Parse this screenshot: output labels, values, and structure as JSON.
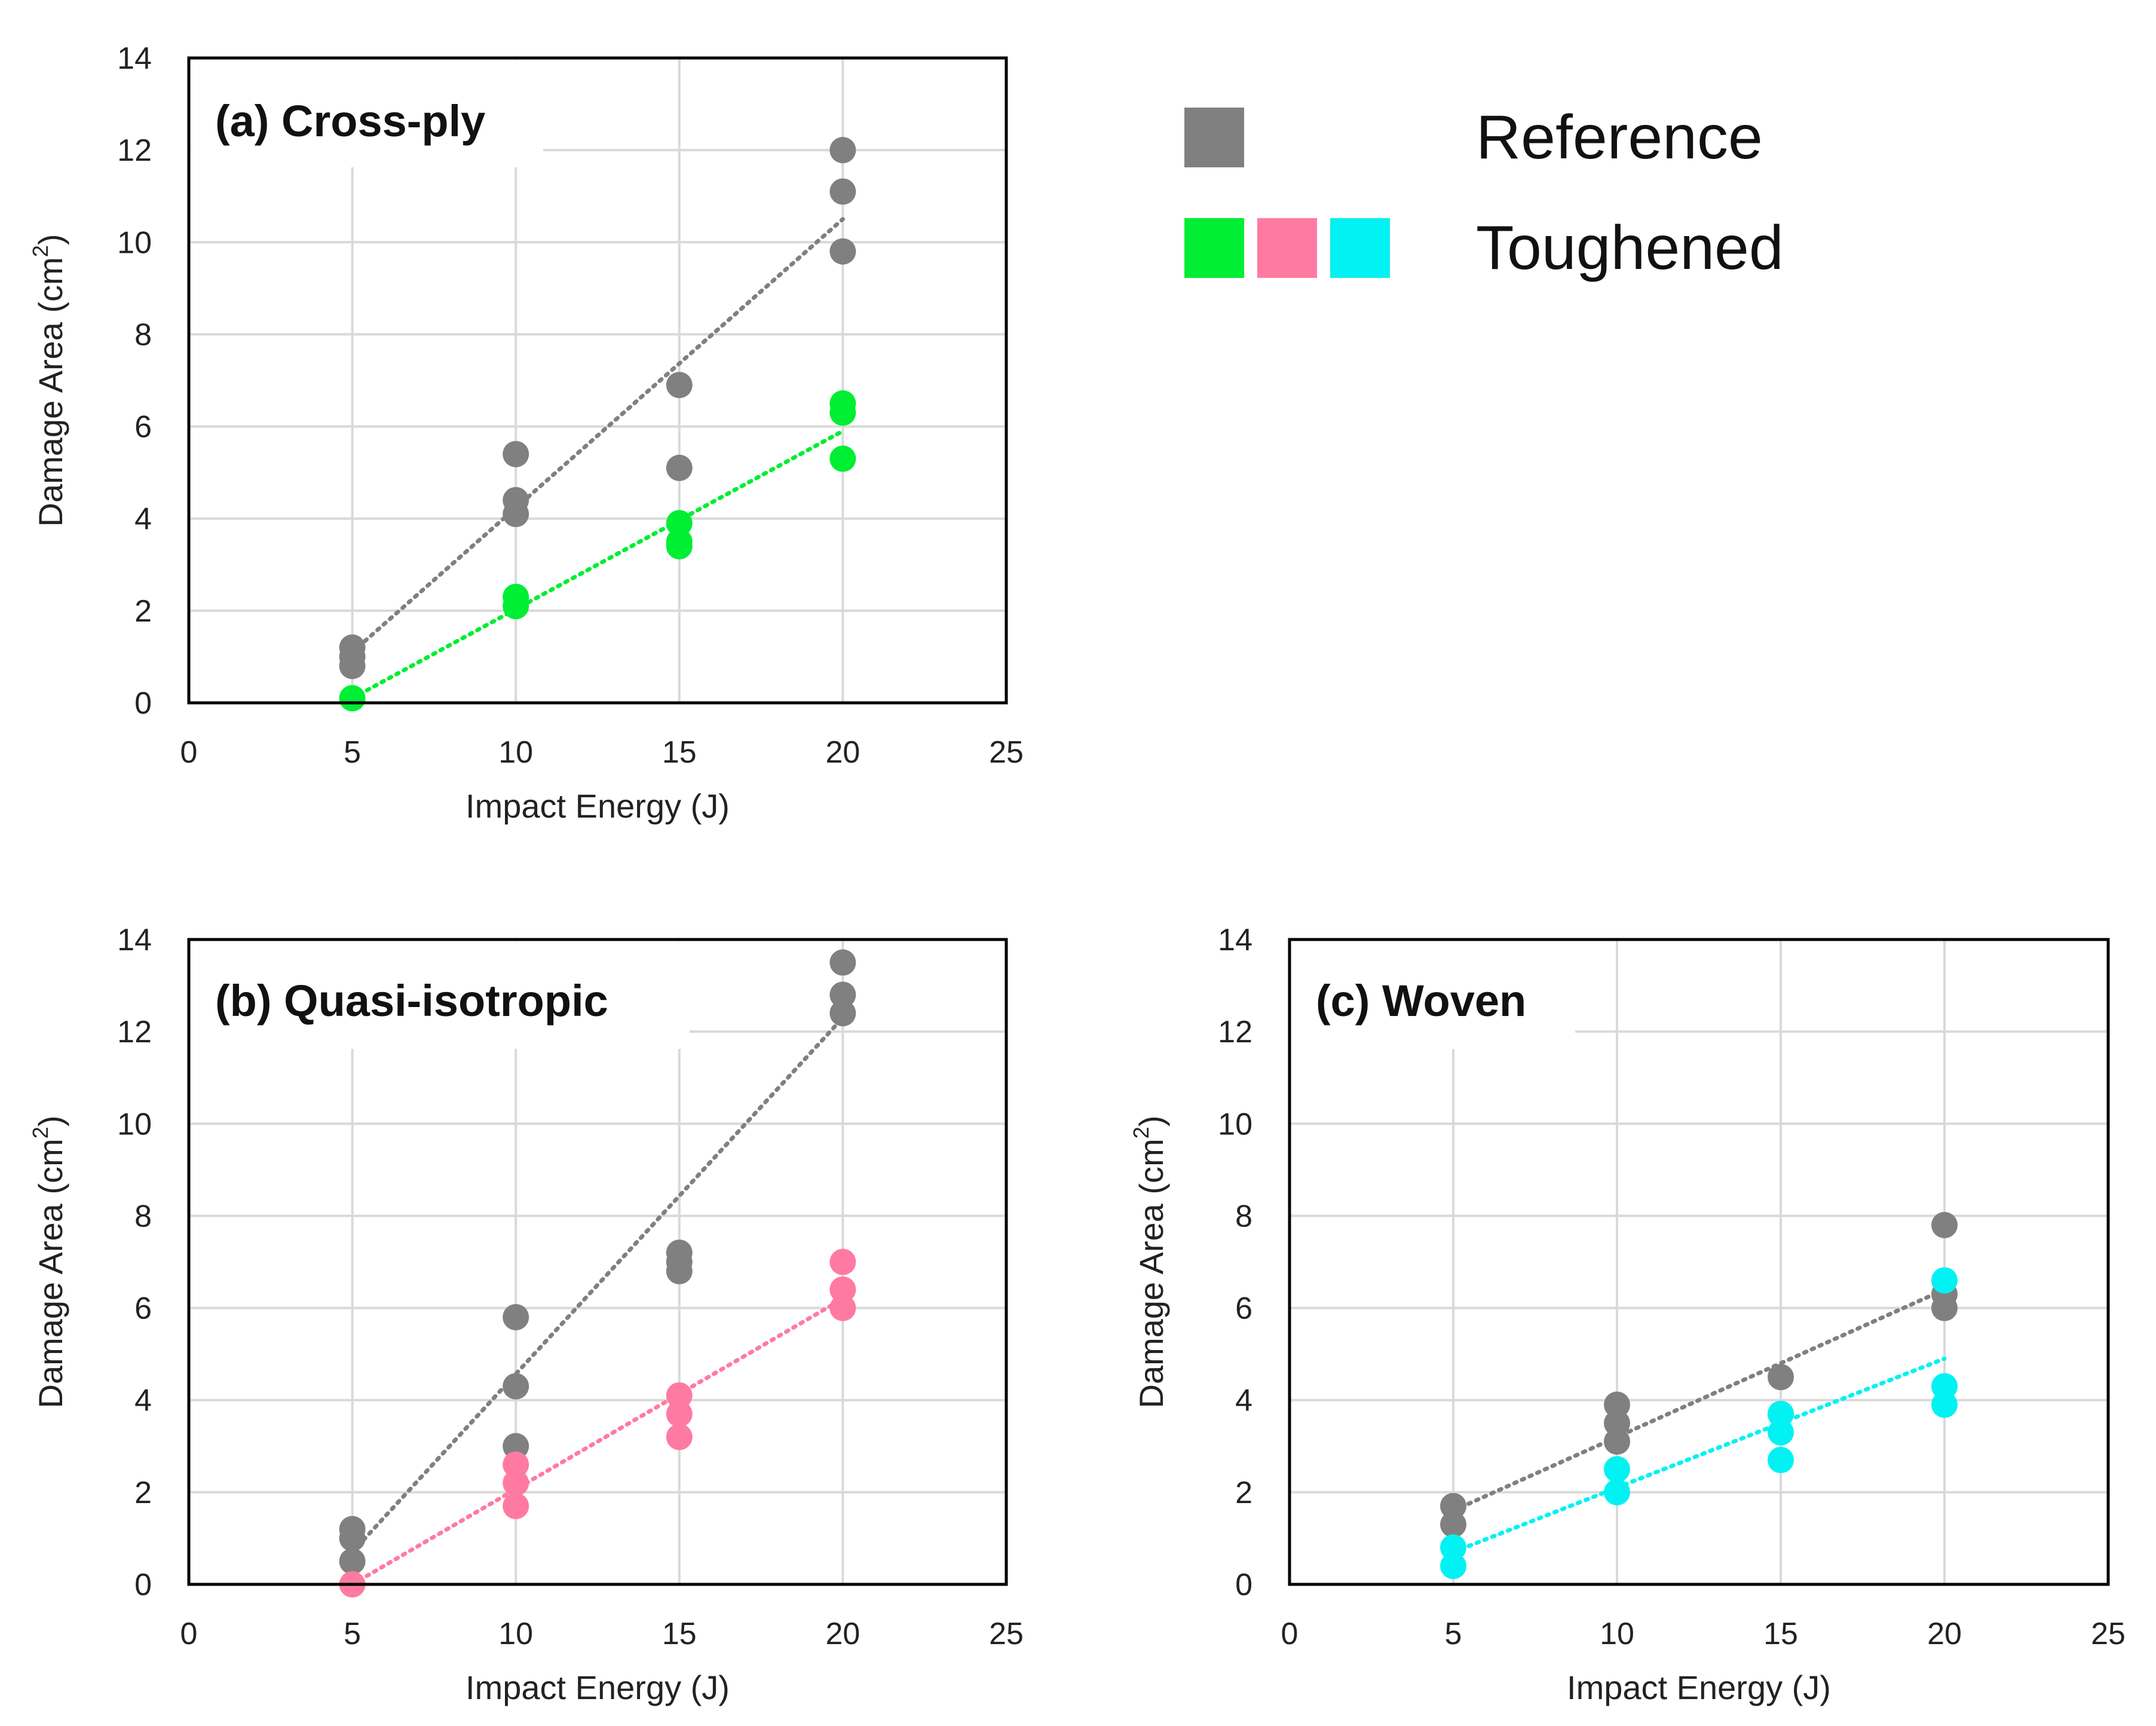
{
  "chart_data": [
    {
      "type": "scatter",
      "id": "a",
      "title": "(a) Cross-ply",
      "xlabel": "Impact Energy (J)",
      "ylabel_main": "Damage Area (cm",
      "ylabel_sup": "2",
      "ylabel_close": ")",
      "xlim": [
        0,
        25
      ],
      "ylim": [
        0,
        14
      ],
      "xticks": [
        "0",
        "5",
        "10",
        "15",
        "20",
        "25"
      ],
      "yticks": [
        "0",
        "2",
        "4",
        "6",
        "8",
        "10",
        "12",
        "14"
      ],
      "series": [
        {
          "name": "Reference",
          "color": "#808080",
          "points": [
            [
              5,
              0.8
            ],
            [
              5,
              1.0
            ],
            [
              5,
              1.2
            ],
            [
              10,
              4.1
            ],
            [
              10,
              4.4
            ],
            [
              10,
              5.4
            ],
            [
              15,
              5.1
            ],
            [
              15,
              6.9
            ],
            [
              20,
              9.8
            ],
            [
              20,
              11.1
            ],
            [
              20,
              12.0
            ]
          ],
          "trend": [
            [
              5,
              1.1
            ],
            [
              20,
              10.5
            ]
          ]
        },
        {
          "name": "Toughened",
          "color": "#00ee33",
          "points": [
            [
              5,
              0.1
            ],
            [
              10,
              2.1
            ],
            [
              10,
              2.3
            ],
            [
              15,
              3.4
            ],
            [
              15,
              3.5
            ],
            [
              15,
              3.9
            ],
            [
              20,
              5.3
            ],
            [
              20,
              6.3
            ],
            [
              20,
              6.5
            ]
          ],
          "trend": [
            [
              5,
              0.1
            ],
            [
              20,
              5.9
            ]
          ]
        }
      ]
    },
    {
      "type": "scatter",
      "id": "b",
      "title": "(b) Quasi-isotropic",
      "xlabel": "Impact Energy (J)",
      "ylabel_main": "Damage Area (cm",
      "ylabel_sup": "2",
      "ylabel_close": ")",
      "xlim": [
        0,
        25
      ],
      "ylim": [
        0,
        14
      ],
      "xticks": [
        "0",
        "5",
        "10",
        "15",
        "20",
        "25"
      ],
      "yticks": [
        "0",
        "2",
        "4",
        "6",
        "8",
        "10",
        "12",
        "14"
      ],
      "series": [
        {
          "name": "Reference",
          "color": "#808080",
          "points": [
            [
              5,
              0.5
            ],
            [
              5,
              1.0
            ],
            [
              5,
              1.2
            ],
            [
              10,
              3.0
            ],
            [
              10,
              4.3
            ],
            [
              10,
              5.8
            ],
            [
              15,
              6.8
            ],
            [
              15,
              7.0
            ],
            [
              15,
              7.2
            ],
            [
              20,
              12.4
            ],
            [
              20,
              12.8
            ],
            [
              20,
              13.5
            ]
          ],
          "trend": [
            [
              5,
              0.7
            ],
            [
              20,
              12.3
            ]
          ]
        },
        {
          "name": "Toughened",
          "color": "#ff7aa2",
          "points": [
            [
              5,
              0.0
            ],
            [
              10,
              1.7
            ],
            [
              10,
              2.2
            ],
            [
              10,
              2.6
            ],
            [
              15,
              3.2
            ],
            [
              15,
              3.7
            ],
            [
              15,
              4.1
            ],
            [
              20,
              6.0
            ],
            [
              20,
              6.4
            ],
            [
              20,
              7.0
            ]
          ],
          "trend": [
            [
              5,
              0.0
            ],
            [
              20,
              6.2
            ]
          ]
        }
      ]
    },
    {
      "type": "scatter",
      "id": "c",
      "title": "(c) Woven",
      "xlabel": "Impact Energy (J)",
      "ylabel_main": "Damage Area (cm",
      "ylabel_sup": "2",
      "ylabel_close": ")",
      "xlim": [
        0,
        25
      ],
      "ylim": [
        0,
        14
      ],
      "xticks": [
        "0",
        "5",
        "10",
        "15",
        "20",
        "25"
      ],
      "yticks": [
        "0",
        "2",
        "4",
        "6",
        "8",
        "10",
        "12",
        "14"
      ],
      "series": [
        {
          "name": "Reference",
          "color": "#808080",
          "points": [
            [
              5,
              1.3
            ],
            [
              5,
              1.7
            ],
            [
              10,
              3.1
            ],
            [
              10,
              3.5
            ],
            [
              10,
              3.9
            ],
            [
              15,
              3.7
            ],
            [
              15,
              4.5
            ],
            [
              20,
              6.0
            ],
            [
              20,
              6.3
            ],
            [
              20,
              7.8
            ]
          ],
          "trend": [
            [
              5,
              1.6
            ],
            [
              20,
              6.4
            ]
          ]
        },
        {
          "name": "Toughened",
          "color": "#00f2f2",
          "points": [
            [
              5,
              0.4
            ],
            [
              5,
              0.8
            ],
            [
              10,
              2.0
            ],
            [
              10,
              2.5
            ],
            [
              15,
              2.7
            ],
            [
              15,
              3.3
            ],
            [
              15,
              3.7
            ],
            [
              20,
              3.9
            ],
            [
              20,
              4.3
            ],
            [
              20,
              6.6
            ]
          ],
          "trend": [
            [
              5,
              0.7
            ],
            [
              20,
              4.9
            ]
          ]
        }
      ]
    }
  ],
  "legend": {
    "reference_label": "Reference",
    "toughened_label": "Toughened",
    "reference_color": "#808080",
    "toughened_colors": [
      "#00ee33",
      "#ff7aa2",
      "#00f2f2"
    ]
  }
}
